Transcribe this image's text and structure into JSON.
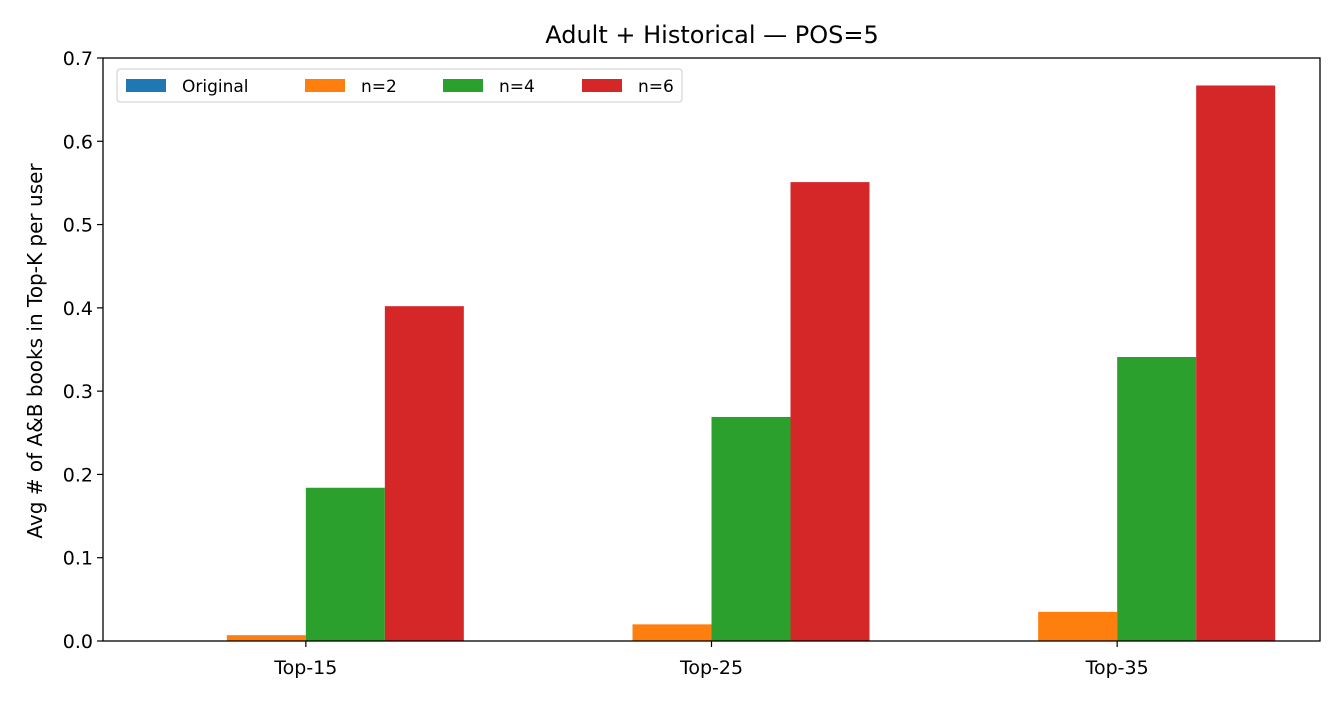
{
  "chart_data": {
    "type": "bar",
    "title": "Adult + Historical — POS=5",
    "xlabel": "",
    "ylabel": "Avg # of A&B books in Top-K per user",
    "categories": [
      "Top-15",
      "Top-25",
      "Top-35"
    ],
    "ylim": [
      0,
      0.7
    ],
    "yticks": [
      "0.0",
      "0.1",
      "0.2",
      "0.3",
      "0.4",
      "0.5",
      "0.6",
      "0.7"
    ],
    "grid": false,
    "legend_position": "top-left",
    "series": [
      {
        "name": "Original",
        "color": "#1f77b4",
        "values": [
          0,
          0,
          0
        ]
      },
      {
        "name": "n=2",
        "color": "#ff7f0e",
        "values": [
          0.007,
          0.02,
          0.035
        ]
      },
      {
        "name": "n=4",
        "color": "#2ca02c",
        "values": [
          0.184,
          0.269,
          0.341
        ]
      },
      {
        "name": "n=6",
        "color": "#d62728",
        "values": [
          0.402,
          0.551,
          0.667
        ]
      }
    ]
  }
}
